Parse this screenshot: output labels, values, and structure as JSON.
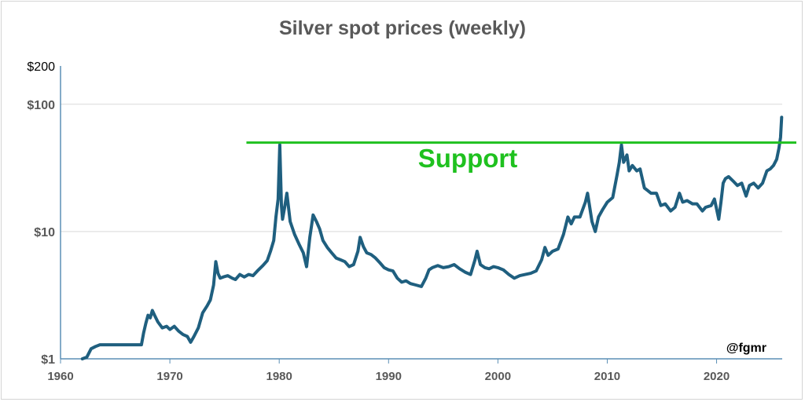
{
  "chart_data": {
    "type": "line",
    "title": "Silver spot prices (weekly)",
    "y_scale": "log",
    "ylim": [
      1,
      200
    ],
    "xlim": [
      1960,
      2026
    ],
    "y_ticks": [
      {
        "value": 200,
        "label": "$200",
        "bold": false
      },
      {
        "value": 100,
        "label": "$100",
        "bold": true
      },
      {
        "value": 10,
        "label": "$10",
        "bold": true
      },
      {
        "value": 1,
        "label": "$1",
        "bold": true
      }
    ],
    "gridlines": [
      100,
      10
    ],
    "x_ticks": [
      {
        "value": 1960,
        "label": "1960"
      },
      {
        "value": 1970,
        "label": "1970"
      },
      {
        "value": 1980,
        "label": "1980"
      },
      {
        "value": 1990,
        "label": "1990"
      },
      {
        "value": 2000,
        "label": "2000"
      },
      {
        "value": 2010,
        "label": "2010"
      },
      {
        "value": 2020,
        "label": "2020"
      }
    ],
    "series": [
      {
        "color": "#1f5f7f",
        "points": [
          [
            1962.0,
            1.0
          ],
          [
            1962.4,
            1.03
          ],
          [
            1962.8,
            1.2
          ],
          [
            1963.2,
            1.25
          ],
          [
            1963.6,
            1.29
          ],
          [
            1964,
            1.29
          ],
          [
            1966,
            1.29
          ],
          [
            1967.4,
            1.29
          ],
          [
            1967.6,
            1.6
          ],
          [
            1967.8,
            1.9
          ],
          [
            1968.0,
            2.2
          ],
          [
            1968.2,
            2.1
          ],
          [
            1968.4,
            2.4
          ],
          [
            1968.6,
            2.2
          ],
          [
            1968.9,
            1.95
          ],
          [
            1969.3,
            1.75
          ],
          [
            1969.7,
            1.8
          ],
          [
            1970.0,
            1.7
          ],
          [
            1970.4,
            1.8
          ],
          [
            1970.8,
            1.65
          ],
          [
            1971.2,
            1.55
          ],
          [
            1971.6,
            1.5
          ],
          [
            1971.9,
            1.35
          ],
          [
            1972.2,
            1.5
          ],
          [
            1972.6,
            1.75
          ],
          [
            1973.0,
            2.3
          ],
          [
            1973.4,
            2.6
          ],
          [
            1973.7,
            2.9
          ],
          [
            1974.0,
            3.8
          ],
          [
            1974.2,
            5.8
          ],
          [
            1974.4,
            4.7
          ],
          [
            1974.6,
            4.3
          ],
          [
            1974.9,
            4.4
          ],
          [
            1975.3,
            4.5
          ],
          [
            1975.7,
            4.3
          ],
          [
            1976.0,
            4.2
          ],
          [
            1976.4,
            4.6
          ],
          [
            1976.8,
            4.4
          ],
          [
            1977.2,
            4.6
          ],
          [
            1977.6,
            4.5
          ],
          [
            1978.0,
            4.9
          ],
          [
            1978.5,
            5.4
          ],
          [
            1978.9,
            5.9
          ],
          [
            1979.2,
            7.0
          ],
          [
            1979.5,
            8.5
          ],
          [
            1979.7,
            13.0
          ],
          [
            1979.9,
            18.0
          ],
          [
            1980.05,
            48.0
          ],
          [
            1980.2,
            16.0
          ],
          [
            1980.3,
            12.5
          ],
          [
            1980.5,
            15.5
          ],
          [
            1980.7,
            20.0
          ],
          [
            1981.0,
            12.0
          ],
          [
            1981.4,
            9.5
          ],
          [
            1981.8,
            8.0
          ],
          [
            1982.2,
            6.8
          ],
          [
            1982.5,
            5.3
          ],
          [
            1982.8,
            9.0
          ],
          [
            1983.1,
            13.5
          ],
          [
            1983.4,
            12.0
          ],
          [
            1983.7,
            10.5
          ],
          [
            1984.0,
            8.5
          ],
          [
            1984.4,
            7.5
          ],
          [
            1984.8,
            6.8
          ],
          [
            1985.2,
            6.2
          ],
          [
            1985.6,
            6.0
          ],
          [
            1986.0,
            5.8
          ],
          [
            1986.4,
            5.3
          ],
          [
            1986.8,
            5.5
          ],
          [
            1987.2,
            7.0
          ],
          [
            1987.4,
            9.0
          ],
          [
            1987.7,
            7.6
          ],
          [
            1988.0,
            6.8
          ],
          [
            1988.4,
            6.6
          ],
          [
            1988.8,
            6.2
          ],
          [
            1989.2,
            5.7
          ],
          [
            1989.6,
            5.2
          ],
          [
            1990.0,
            5.0
          ],
          [
            1990.4,
            4.9
          ],
          [
            1990.8,
            4.3
          ],
          [
            1991.2,
            4.0
          ],
          [
            1991.6,
            4.1
          ],
          [
            1992.0,
            3.9
          ],
          [
            1992.5,
            3.8
          ],
          [
            1993.0,
            3.7
          ],
          [
            1993.4,
            4.3
          ],
          [
            1993.7,
            5.0
          ],
          [
            1994.0,
            5.2
          ],
          [
            1994.5,
            5.4
          ],
          [
            1995.0,
            5.2
          ],
          [
            1995.5,
            5.3
          ],
          [
            1996.0,
            5.5
          ],
          [
            1996.5,
            5.1
          ],
          [
            1997.0,
            4.8
          ],
          [
            1997.5,
            4.6
          ],
          [
            1997.9,
            6.0
          ],
          [
            1998.1,
            7.0
          ],
          [
            1998.4,
            5.5
          ],
          [
            1998.8,
            5.2
          ],
          [
            1999.2,
            5.1
          ],
          [
            1999.6,
            5.3
          ],
          [
            2000.0,
            5.2
          ],
          [
            2000.5,
            5.0
          ],
          [
            2001.0,
            4.6
          ],
          [
            2001.5,
            4.3
          ],
          [
            2002.0,
            4.5
          ],
          [
            2002.5,
            4.6
          ],
          [
            2003.0,
            4.7
          ],
          [
            2003.5,
            4.9
          ],
          [
            2004.0,
            6.0
          ],
          [
            2004.3,
            7.5
          ],
          [
            2004.6,
            6.5
          ],
          [
            2005.0,
            7.0
          ],
          [
            2005.5,
            7.3
          ],
          [
            2006.0,
            9.5
          ],
          [
            2006.4,
            13.0
          ],
          [
            2006.7,
            11.5
          ],
          [
            2007.0,
            13.0
          ],
          [
            2007.5,
            13.0
          ],
          [
            2008.0,
            17.0
          ],
          [
            2008.2,
            20.0
          ],
          [
            2008.6,
            12.0
          ],
          [
            2008.9,
            10.0
          ],
          [
            2009.2,
            13.0
          ],
          [
            2009.6,
            15.0
          ],
          [
            2010.0,
            17.0
          ],
          [
            2010.5,
            18.5
          ],
          [
            2010.9,
            28.0
          ],
          [
            2011.1,
            35.0
          ],
          [
            2011.3,
            48.0
          ],
          [
            2011.5,
            35.0
          ],
          [
            2011.8,
            40.0
          ],
          [
            2012.0,
            30.0
          ],
          [
            2012.3,
            33.0
          ],
          [
            2012.7,
            30.0
          ],
          [
            2013.0,
            31.0
          ],
          [
            2013.4,
            22.0
          ],
          [
            2013.7,
            21.0
          ],
          [
            2014.0,
            20.0
          ],
          [
            2014.5,
            20.0
          ],
          [
            2014.9,
            16.0
          ],
          [
            2015.3,
            16.5
          ],
          [
            2015.8,
            14.5
          ],
          [
            2016.2,
            15.5
          ],
          [
            2016.6,
            20.0
          ],
          [
            2016.9,
            17.0
          ],
          [
            2017.3,
            17.5
          ],
          [
            2017.8,
            16.5
          ],
          [
            2018.2,
            16.5
          ],
          [
            2018.7,
            14.5
          ],
          [
            2019.0,
            15.5
          ],
          [
            2019.5,
            16.0
          ],
          [
            2019.8,
            18.0
          ],
          [
            2020.2,
            12.5
          ],
          [
            2020.4,
            17.0
          ],
          [
            2020.6,
            24.0
          ],
          [
            2020.8,
            26.0
          ],
          [
            2021.1,
            27.0
          ],
          [
            2021.5,
            25.0
          ],
          [
            2021.9,
            23.0
          ],
          [
            2022.3,
            24.0
          ],
          [
            2022.7,
            19.0
          ],
          [
            2023.0,
            23.0
          ],
          [
            2023.4,
            24.0
          ],
          [
            2023.8,
            22.0
          ],
          [
            2024.2,
            24.0
          ],
          [
            2024.6,
            30.0
          ],
          [
            2024.9,
            31.0
          ],
          [
            2025.2,
            33.0
          ],
          [
            2025.5,
            37.0
          ],
          [
            2025.7,
            45.0
          ],
          [
            2025.85,
            55.0
          ],
          [
            2025.95,
            79.0
          ]
        ]
      }
    ],
    "annotations": {
      "support_line": {
        "value": 50,
        "x_start": 1977.0,
        "x_end": 2026.0,
        "color": "#1fc11f"
      },
      "support_label": "Support",
      "watermark": "@fgmr"
    }
  }
}
